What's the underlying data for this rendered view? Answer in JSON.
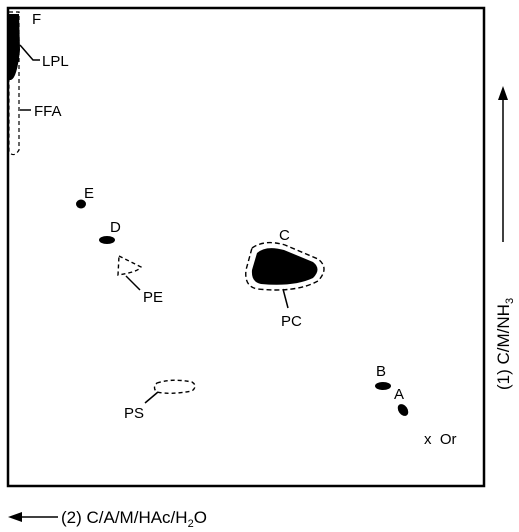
{
  "labels": {
    "F": "F",
    "LPL": "LPL",
    "FFA": "FFA",
    "E": "E",
    "D": "D",
    "PE": "PE",
    "C": "C",
    "PC": "PC",
    "B": "B",
    "A": "A",
    "PS": "PS",
    "origin": "x  Or"
  },
  "axes": {
    "dim1_prefix": "(1) C/M/NH",
    "dim1_sub": "3",
    "dim2_prefix": "(2) C/A/M/HAc/H",
    "dim2_sub": "2",
    "dim2_suffix": "O"
  }
}
